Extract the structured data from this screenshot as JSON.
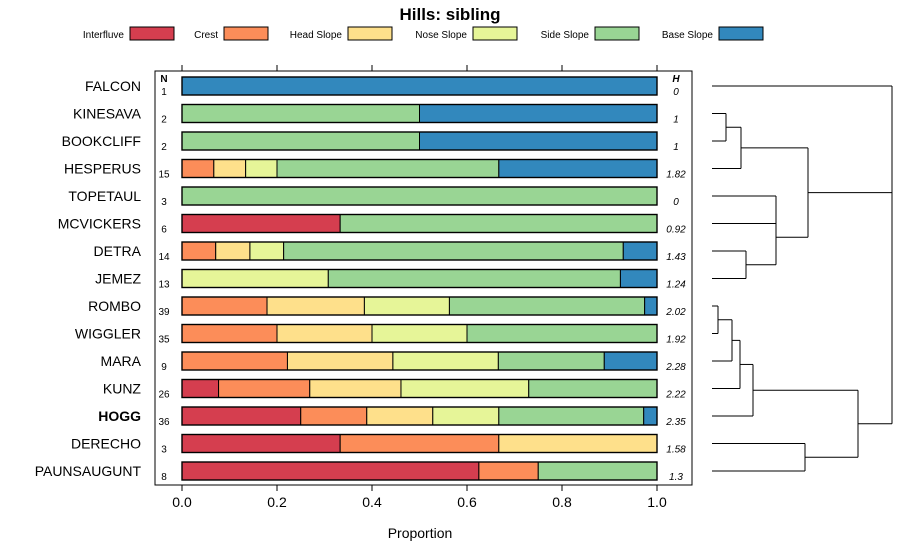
{
  "chart_data": {
    "type": "stacked-bar-horizontal",
    "title": "Hills: sibling",
    "xlabel": "Proportion",
    "ylabel": "",
    "xlim": [
      0,
      1
    ],
    "x_ticks": [
      "0.0",
      "0.2",
      "0.4",
      "0.6",
      "0.8",
      "1.0"
    ],
    "x_tick_values": [
      0,
      0.2,
      0.4,
      0.6,
      0.8,
      1.0
    ],
    "n_header": "N",
    "h_header": "H",
    "legend_position": "top",
    "categories": [
      "Interfluve",
      "Crest",
      "Head Slope",
      "Nose Slope",
      "Side Slope",
      "Base Slope"
    ],
    "colors": [
      "#D53E4F",
      "#FC8D59",
      "#FEE08B",
      "#E6F598",
      "#99D594",
      "#3288BD"
    ],
    "rows": [
      {
        "name": "FALCON",
        "n": "1",
        "h": "0",
        "bold": false,
        "values": [
          0,
          0,
          0,
          0,
          0,
          1.0
        ]
      },
      {
        "name": "KINESAVA",
        "n": "2",
        "h": "1",
        "bold": false,
        "values": [
          0,
          0,
          0,
          0,
          0.5,
          0.5
        ]
      },
      {
        "name": "BOOKCLIFF",
        "n": "2",
        "h": "1",
        "bold": false,
        "values": [
          0,
          0,
          0,
          0,
          0.5,
          0.5
        ]
      },
      {
        "name": "HESPERUS",
        "n": "15",
        "h": "1.82",
        "bold": false,
        "values": [
          0,
          0.067,
          0.067,
          0.066,
          0.467,
          0.333
        ]
      },
      {
        "name": "TOPETAUL",
        "n": "3",
        "h": "0",
        "bold": false,
        "values": [
          0,
          0,
          0,
          0,
          1.0,
          0
        ]
      },
      {
        "name": "MCVICKERS",
        "n": "6",
        "h": "0.92",
        "bold": false,
        "values": [
          0.333,
          0,
          0,
          0,
          0.667,
          0
        ]
      },
      {
        "name": "DETRA",
        "n": "14",
        "h": "1.43",
        "bold": false,
        "values": [
          0,
          0.071,
          0.072,
          0.071,
          0.715,
          0.071
        ]
      },
      {
        "name": "JEMEZ",
        "n": "13",
        "h": "1.24",
        "bold": false,
        "values": [
          0,
          0,
          0,
          0.308,
          0.615,
          0.077
        ]
      },
      {
        "name": "ROMBO",
        "n": "39",
        "h": "2.02",
        "bold": false,
        "values": [
          0,
          0.179,
          0.205,
          0.179,
          0.411,
          0.026
        ]
      },
      {
        "name": "WIGGLER",
        "n": "35",
        "h": "1.92",
        "bold": false,
        "values": [
          0,
          0.2,
          0.2,
          0.2,
          0.4,
          0
        ]
      },
      {
        "name": "MARA",
        "n": "9",
        "h": "2.28",
        "bold": false,
        "values": [
          0,
          0.222,
          0.222,
          0.222,
          0.223,
          0.111
        ]
      },
      {
        "name": "KUNZ",
        "n": "26",
        "h": "2.22",
        "bold": false,
        "values": [
          0.077,
          0.192,
          0.192,
          0.269,
          0.27,
          0
        ]
      },
      {
        "name": "HOGG",
        "n": "36",
        "h": "2.35",
        "bold": true,
        "values": [
          0.25,
          0.139,
          0.139,
          0.139,
          0.305,
          0.028
        ]
      },
      {
        "name": "DERECHO",
        "n": "3",
        "h": "1.58",
        "bold": false,
        "values": [
          0.333,
          0.334,
          0.333,
          0,
          0,
          0
        ]
      },
      {
        "name": "PAUNSAUGUNT",
        "n": "8",
        "h": "1.3",
        "bold": false,
        "values": [
          0.625,
          0.125,
          0,
          0,
          0.25,
          0
        ]
      }
    ]
  }
}
